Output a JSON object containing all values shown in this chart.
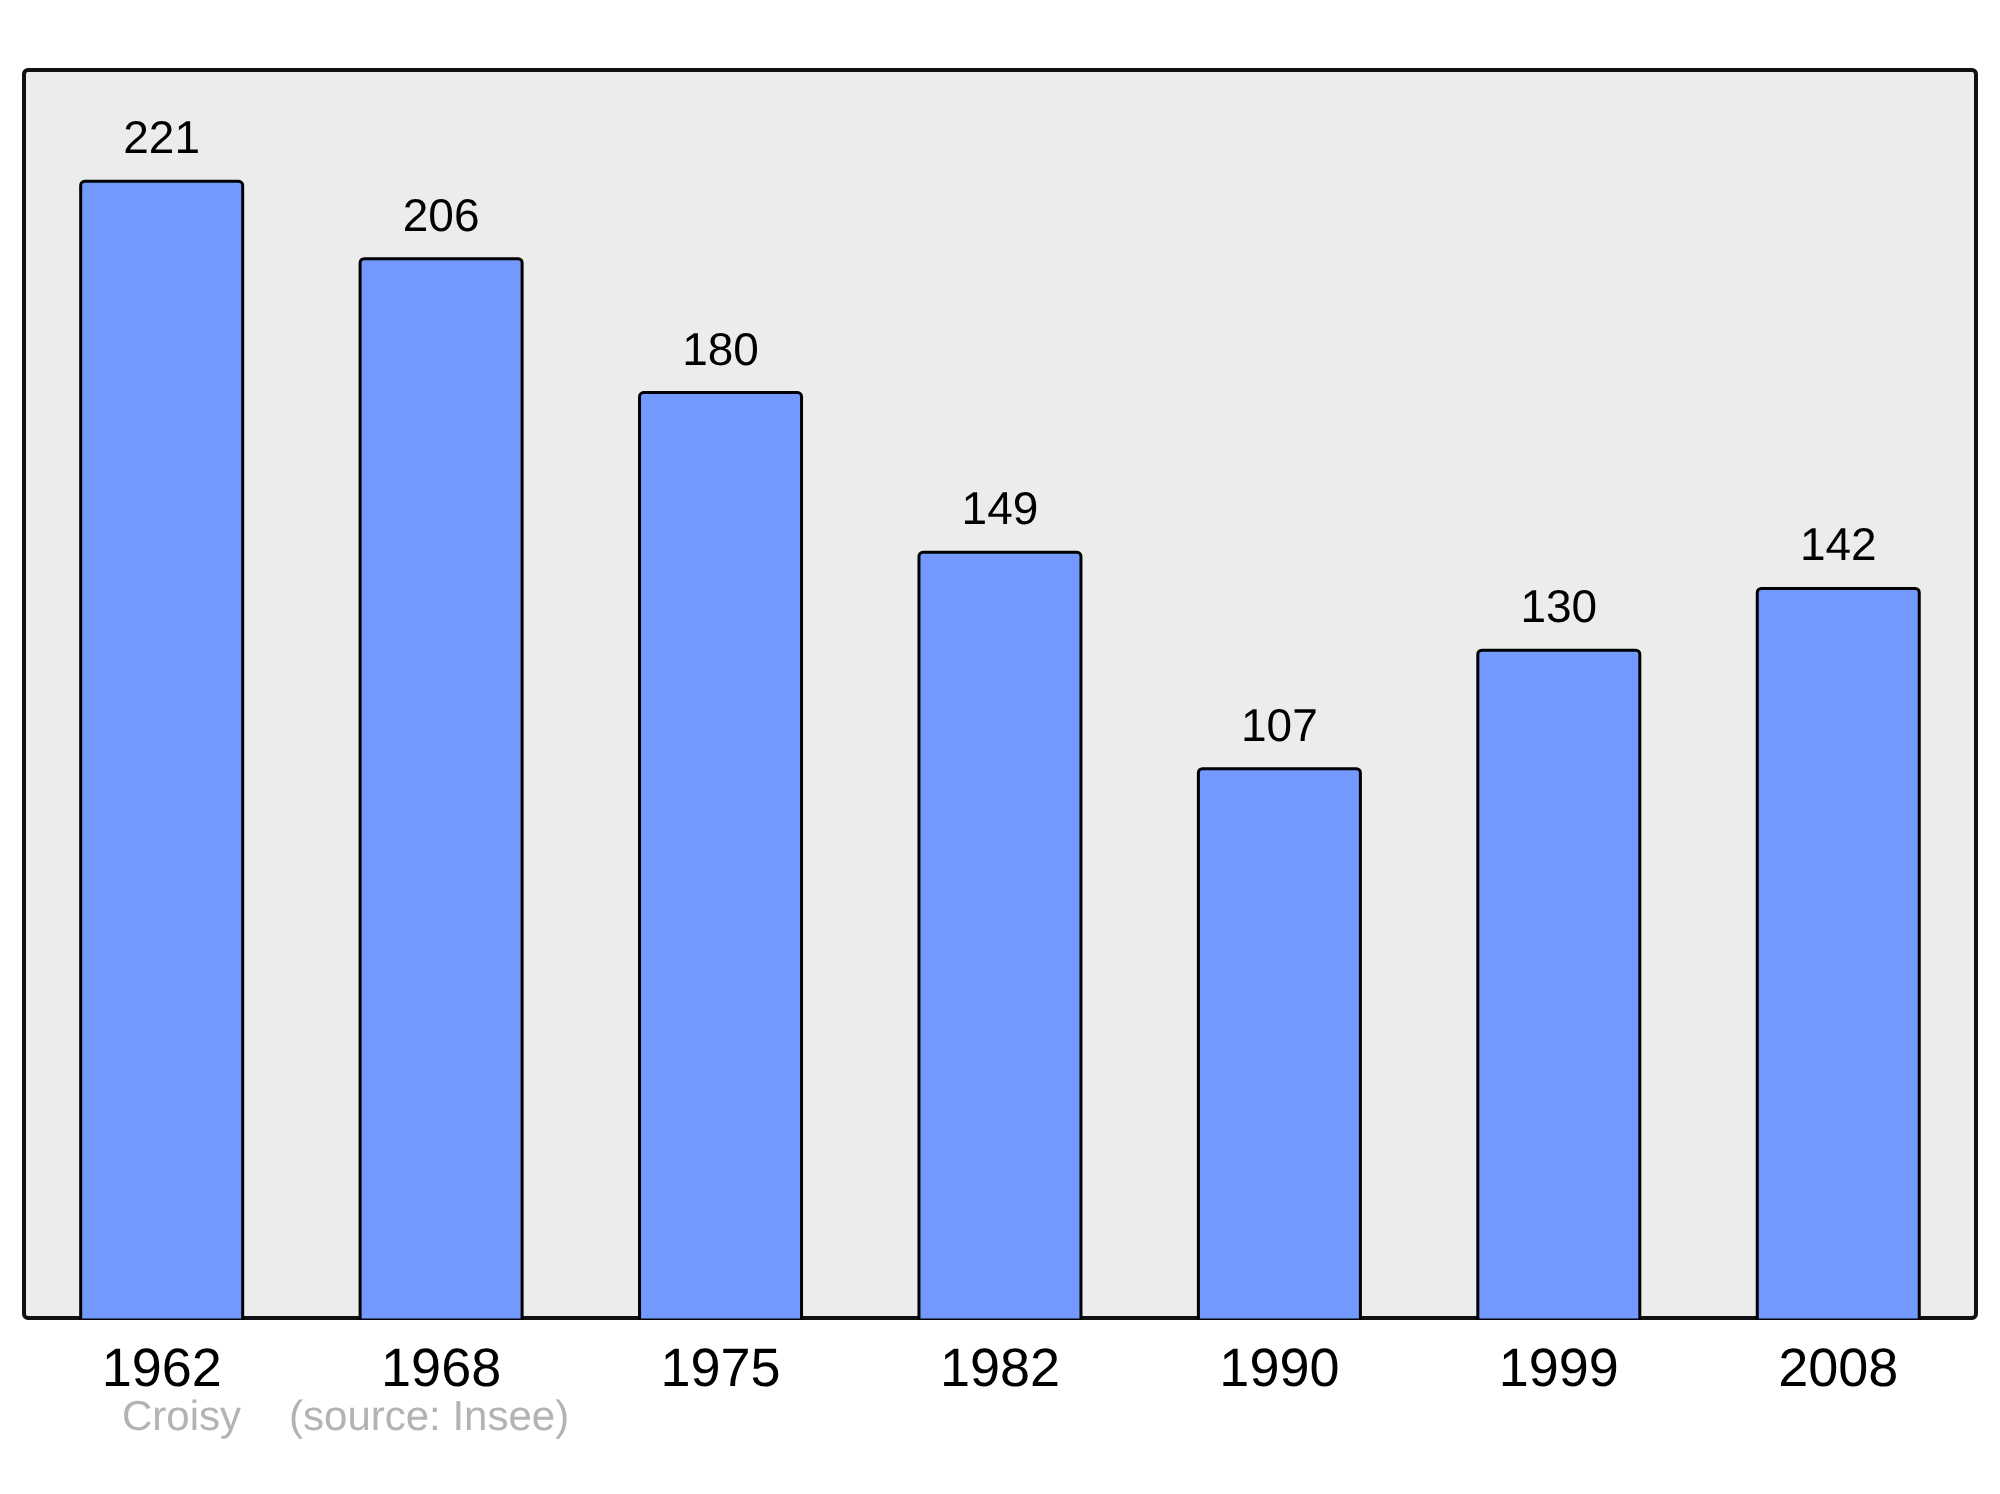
{
  "chart_data": {
    "type": "bar",
    "categories": [
      "1962",
      "1968",
      "1975",
      "1982",
      "1990",
      "1999",
      "2008"
    ],
    "values": [
      221,
      206,
      180,
      149,
      107,
      130,
      142
    ],
    "color": "#7399ff",
    "ylim": [
      0,
      243
    ],
    "tick_labels": "x",
    "data_labels": true,
    "grid": false,
    "legend": false,
    "annotations": [
      "Croisy",
      "(source: Insee)"
    ]
  }
}
